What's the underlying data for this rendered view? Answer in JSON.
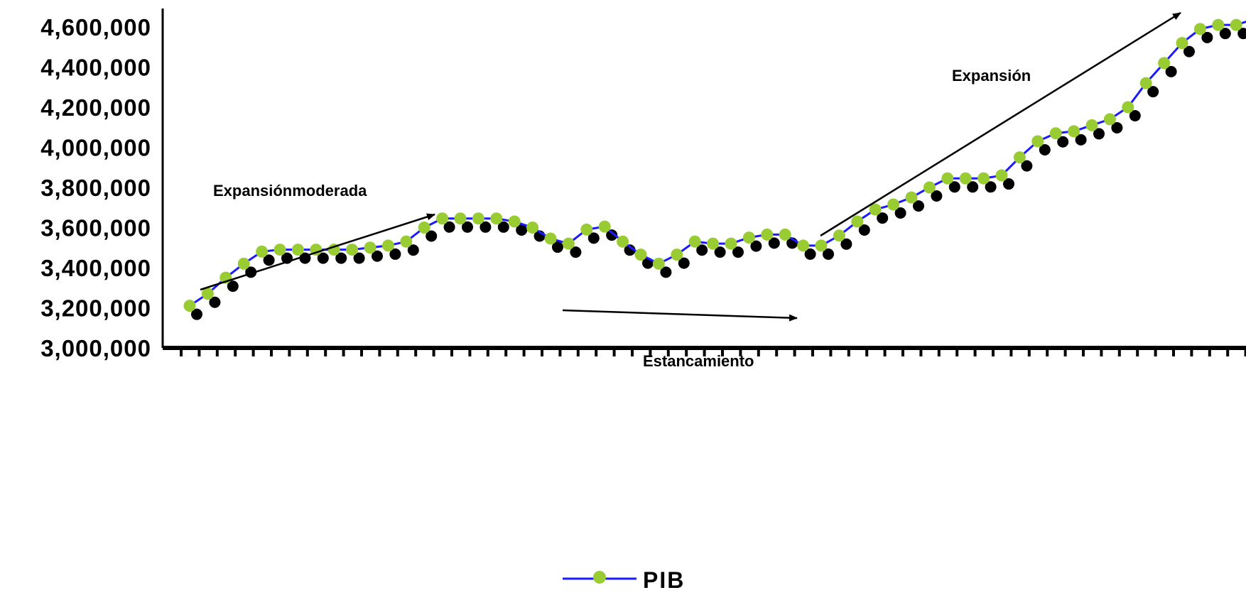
{
  "chart_data": {
    "type": "line",
    "ylim": [
      3000000,
      4600000
    ],
    "y_ticks": [
      "4,600,000",
      "4,400,000",
      "4,200,000",
      "4,000,000",
      "3,800,000",
      "3,600,000",
      "3,400,000",
      "3,200,000",
      "3,000,000"
    ],
    "y_tick_values": [
      4600000,
      4400000,
      4200000,
      4000000,
      3800000,
      3600000,
      3400000,
      3200000,
      3000000
    ],
    "grid": false,
    "legend_position": "bottom-center",
    "series": [
      {
        "name": "PIB",
        "line_color": "#1a1aff",
        "marker_color": "#99cc33",
        "shadow_color": "#000000",
        "values": [
          3210000,
          3270000,
          3350000,
          3420000,
          3480000,
          3490000,
          3490000,
          3490000,
          3490000,
          3490000,
          3500000,
          3510000,
          3530000,
          3600000,
          3645000,
          3645000,
          3645000,
          3645000,
          3630000,
          3600000,
          3545000,
          3520000,
          3590000,
          3605000,
          3530000,
          3465000,
          3420000,
          3465000,
          3530000,
          3520000,
          3520000,
          3550000,
          3565000,
          3565000,
          3510000,
          3510000,
          3560000,
          3630000,
          3690000,
          3715000,
          3750000,
          3800000,
          3845000,
          3845000,
          3845000,
          3860000,
          3950000,
          4030000,
          4070000,
          4080000,
          4110000,
          4140000,
          4200000,
          4320000,
          4420000,
          4520000,
          4590000,
          4610000,
          4610000,
          4640000
        ]
      }
    ],
    "annotations": [
      {
        "text": "Expansiónmoderada"
      },
      {
        "text": "Estancamiento"
      },
      {
        "text": "Expansión"
      }
    ]
  }
}
